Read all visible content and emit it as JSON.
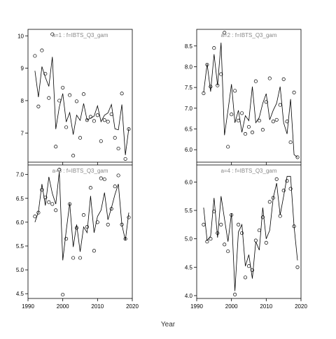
{
  "xlabel": "Year",
  "chart_data": [
    {
      "type": "line",
      "title": "a=1  :  f=IBTS_Q3_gam",
      "xlim": [
        1990,
        2020
      ],
      "ylim": [
        6.1,
        10.2
      ],
      "xticks": [
        1990,
        2000,
        2010,
        2020
      ],
      "yticks": [
        7,
        8,
        9,
        10
      ],
      "series": [
        {
          "style": "line",
          "x": [
            1992,
            1993,
            1994,
            1995,
            1996,
            1997,
            1998,
            1999,
            2000,
            2001,
            2002,
            2003,
            2004,
            2005,
            2006,
            2007,
            2008,
            2009,
            2010,
            2011,
            2012,
            2013,
            2014,
            2015,
            2016,
            2017,
            2018,
            2019
          ],
          "values": [
            8.92,
            8.11,
            9.05,
            8.72,
            8.44,
            9.35,
            7.12,
            7.8,
            8.22,
            7.34,
            7.63,
            6.95,
            7.55,
            7.39,
            7.91,
            7.4,
            7.46,
            7.52,
            7.84,
            7.35,
            7.55,
            7.62,
            7.88,
            7.13,
            7.1,
            7.88,
            6.32,
            7.14
          ]
        },
        {
          "style": "points",
          "x": [
            1992,
            1993,
            1994,
            1995,
            1996,
            1997,
            1998,
            1999,
            2000,
            2001,
            2002,
            2003,
            2004,
            2005,
            2006,
            2007,
            2008,
            2009,
            2010,
            2011,
            2012,
            2013,
            2014,
            2015,
            2016,
            2017,
            2018,
            2019
          ],
          "values": [
            9.38,
            7.82,
            9.55,
            8.83,
            8.08,
            10.05,
            6.58,
            8.0,
            8.4,
            7.18,
            8.17,
            6.3,
            7.98,
            6.85,
            8.2,
            7.4,
            7.5,
            7.37,
            7.55,
            6.75,
            7.4,
            7.35,
            7.58,
            6.85,
            6.52,
            8.22,
            6.2,
            7.12
          ]
        }
      ]
    },
    {
      "type": "line",
      "title": "a=2  :  f=IBTS_Q3_gam",
      "xlim": [
        1990,
        2020
      ],
      "ylim": [
        5.7,
        8.9
      ],
      "xticks": [
        1990,
        2000,
        2010,
        2020
      ],
      "yticks": [
        6.0,
        6.5,
        7.0,
        7.5,
        8.0,
        8.5
      ],
      "series": [
        {
          "style": "line",
          "x": [
            1992,
            1993,
            1994,
            1995,
            1996,
            1997,
            1998,
            1999,
            2000,
            2001,
            2002,
            2003,
            2004,
            2005,
            2006,
            2007,
            2008,
            2009,
            2010,
            2011,
            2012,
            2013,
            2014,
            2015,
            2016,
            2017,
            2018,
            2019
          ],
          "values": [
            7.38,
            8.07,
            7.4,
            8.3,
            7.55,
            8.58,
            6.35,
            6.95,
            7.58,
            6.65,
            6.95,
            6.42,
            6.82,
            6.7,
            7.52,
            6.65,
            6.78,
            7.12,
            7.35,
            6.72,
            6.95,
            7.12,
            7.52,
            6.65,
            6.38,
            7.22,
            5.88,
            5.82
          ]
        },
        {
          "style": "points",
          "x": [
            1992,
            1993,
            1994,
            1995,
            1996,
            1997,
            1998,
            1999,
            2000,
            2001,
            2002,
            2003,
            2004,
            2005,
            2006,
            2007,
            2008,
            2009,
            2010,
            2011,
            2012,
            2013,
            2014,
            2015,
            2016,
            2017,
            2018,
            2019
          ],
          "values": [
            7.36,
            8.05,
            7.52,
            8.45,
            7.55,
            7.82,
            8.82,
            6.07,
            6.85,
            7.42,
            6.7,
            6.88,
            6.38,
            6.55,
            6.42,
            7.65,
            6.7,
            6.48,
            7.15,
            7.72,
            6.68,
            6.72,
            7.08,
            7.7,
            6.68,
            6.18,
            7.38,
            5.82
          ]
        }
      ]
    },
    {
      "type": "line",
      "title": "a=3  :  f=IBTS_Q3_gam",
      "xlim": [
        1990,
        2020
      ],
      "ylim": [
        4.4,
        7.2
      ],
      "xticks": [
        1990,
        2000,
        2010,
        2020
      ],
      "yticks": [
        4.5,
        5.0,
        5.5,
        6.0,
        6.5,
        7.0
      ],
      "series": [
        {
          "style": "line",
          "x": [
            1992,
            1993,
            1994,
            1995,
            1996,
            1997,
            1998,
            1999,
            2000,
            2001,
            2002,
            2003,
            2004,
            2005,
            2006,
            2007,
            2008,
            2009,
            2010,
            2011,
            2012,
            2013,
            2014,
            2015,
            2016,
            2017,
            2018,
            2019
          ],
          "values": [
            6.0,
            6.22,
            6.8,
            6.35,
            6.95,
            6.6,
            6.38,
            7.05,
            5.2,
            5.82,
            6.4,
            5.48,
            5.95,
            5.38,
            5.9,
            5.78,
            6.55,
            5.78,
            6.12,
            6.25,
            6.62,
            6.05,
            6.3,
            6.58,
            6.8,
            5.95,
            5.62,
            6.2
          ]
        },
        {
          "style": "points",
          "x": [
            1992,
            1993,
            1994,
            1995,
            1996,
            1997,
            1998,
            1999,
            2000,
            2001,
            2002,
            2003,
            2004,
            2005,
            2006,
            2007,
            2008,
            2009,
            2010,
            2011,
            2012,
            2013,
            2014,
            2015,
            2016,
            2017,
            2018,
            2019
          ],
          "values": [
            6.12,
            6.2,
            6.68,
            6.52,
            6.42,
            6.38,
            6.25,
            7.1,
            4.48,
            5.65,
            6.38,
            5.25,
            5.88,
            5.25,
            6.15,
            5.9,
            6.72,
            5.4,
            6.0,
            6.92,
            6.9,
            5.95,
            6.28,
            6.75,
            6.98,
            5.95,
            5.65,
            6.1
          ]
        }
      ]
    },
    {
      "type": "line",
      "title": "a=4  :  f=IBTS_Q3_gam",
      "xlim": [
        1990,
        2020
      ],
      "ylim": [
        3.95,
        6.3
      ],
      "xticks": [
        1990,
        2000,
        2010,
        2020
      ],
      "yticks": [
        4.0,
        4.5,
        5.0,
        5.5,
        6.0
      ],
      "series": [
        {
          "style": "line",
          "x": [
            1992,
            1993,
            1994,
            1995,
            1996,
            1997,
            1998,
            1999,
            2000,
            2001,
            2002,
            2003,
            2004,
            2005,
            2006,
            2007,
            2008,
            2009,
            2010,
            2011,
            2012,
            2013,
            2014,
            2015,
            2016,
            2017,
            2018,
            2019
          ],
          "values": [
            5.55,
            4.97,
            5.05,
            5.72,
            5.02,
            5.75,
            5.35,
            4.95,
            5.45,
            4.08,
            5.12,
            5.25,
            4.52,
            4.72,
            4.3,
            4.95,
            4.8,
            5.55,
            5.0,
            5.15,
            5.72,
            5.98,
            5.42,
            5.75,
            6.1,
            6.1,
            5.22,
            4.62
          ]
        },
        {
          "style": "points",
          "x": [
            1992,
            1993,
            1994,
            1995,
            1996,
            1997,
            1998,
            1999,
            2000,
            2001,
            2002,
            2003,
            2004,
            2005,
            2006,
            2007,
            2008,
            2009,
            2010,
            2011,
            2012,
            2013,
            2014,
            2015,
            2016,
            2017,
            2018,
            2019
          ],
          "values": [
            5.25,
            4.95,
            5.0,
            5.48,
            5.1,
            5.25,
            4.9,
            4.78,
            5.42,
            4.02,
            5.25,
            5.1,
            4.32,
            4.52,
            4.45,
            4.97,
            5.15,
            5.38,
            4.93,
            5.65,
            5.72,
            6.05,
            5.4,
            5.85,
            6.02,
            5.88,
            5.22,
            4.5
          ]
        }
      ]
    }
  ]
}
